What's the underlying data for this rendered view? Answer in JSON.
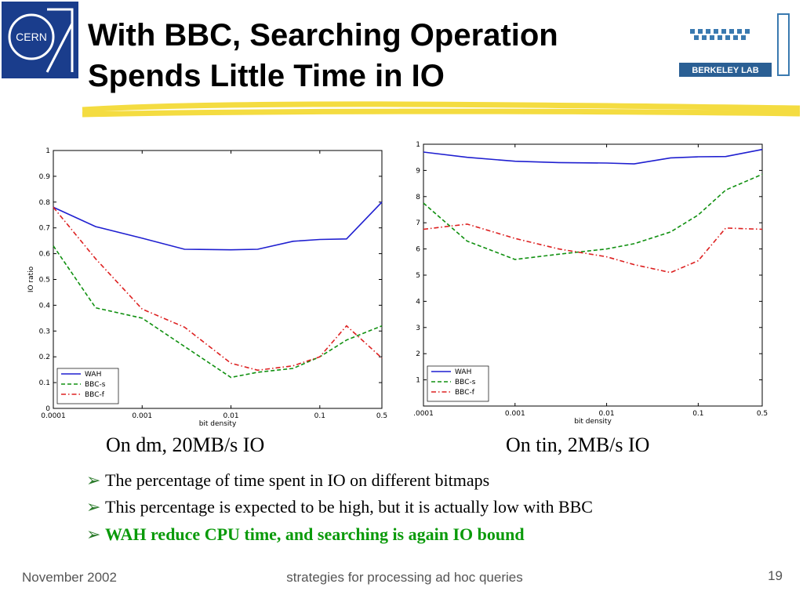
{
  "title": [
    "With BBC, Searching Operation",
    "Spends Little Time in IO"
  ],
  "logos": {
    "left": "CERN",
    "right": "BERKELEY LAB"
  },
  "chart_data": [
    {
      "type": "line",
      "xlabel": "bit density",
      "ylabel": "IO ratio",
      "log_x": true,
      "legend": "lower left",
      "x": [
        0.0001,
        0.0003,
        0.001,
        0.003,
        0.01,
        0.02,
        0.05,
        0.1,
        0.2,
        0.5
      ],
      "xlim": [
        0.0001,
        0.5
      ],
      "xticks": [
        0.0001,
        0.001,
        0.01,
        0.1,
        0.5
      ],
      "ylim": [
        0,
        1
      ],
      "yticks": [
        0,
        0.1,
        0.2,
        0.3,
        0.4,
        0.5,
        0.6,
        0.7,
        0.8,
        0.9,
        1
      ],
      "series": [
        {
          "name": "WAH",
          "color": "#1f1fd0",
          "dash": "solid",
          "values": [
            0.78,
            0.705,
            0.66,
            0.617,
            0.615,
            0.617,
            0.648,
            0.655,
            0.657,
            0.8
          ]
        },
        {
          "name": "BBC-s",
          "color": "#109010",
          "dash": "dashed",
          "values": [
            0.63,
            0.39,
            0.35,
            0.24,
            0.12,
            0.14,
            0.155,
            0.2,
            0.265,
            0.32
          ]
        },
        {
          "name": "BBC-f",
          "color": "#dd2020",
          "dash": "dashdot",
          "values": [
            0.78,
            0.58,
            0.385,
            0.315,
            0.175,
            0.148,
            0.165,
            0.2,
            0.32,
            0.195
          ]
        }
      ]
    },
    {
      "type": "line",
      "xlabel": "bit density",
      "log_x": true,
      "legend": "lower left",
      "x": [
        0.0001,
        0.0003,
        0.001,
        0.003,
        0.01,
        0.02,
        0.05,
        0.1,
        0.2,
        0.5
      ],
      "xlim": [
        0.0001,
        0.5
      ],
      "xticks": [
        {
          "value": 0.0001,
          "label": ".0001"
        },
        0.001,
        0.01,
        0.1,
        0.5
      ],
      "ylim": [
        0,
        1
      ],
      "yticks": [
        {
          "value": 0.1,
          "label": "1"
        },
        {
          "value": 0.2,
          "label": "2"
        },
        {
          "value": 0.3,
          "label": "3"
        },
        {
          "value": 0.4,
          "label": "4"
        },
        {
          "value": 0.5,
          "label": "5"
        },
        {
          "value": 0.6,
          "label": "6"
        },
        {
          "value": 0.7,
          "label": "7"
        },
        {
          "value": 0.8,
          "label": "8"
        },
        {
          "value": 0.9,
          "label": "9"
        },
        1
      ],
      "series": [
        {
          "name": "WAH",
          "color": "#1f1fd0",
          "dash": "solid",
          "values": [
            0.97,
            0.95,
            0.935,
            0.93,
            0.928,
            0.925,
            0.948,
            0.952,
            0.953,
            0.98
          ]
        },
        {
          "name": "BBC-s",
          "color": "#109010",
          "dash": "dashed",
          "values": [
            0.775,
            0.63,
            0.56,
            0.58,
            0.6,
            0.62,
            0.665,
            0.73,
            0.825,
            0.885
          ]
        },
        {
          "name": "BBC-f",
          "color": "#dd2020",
          "dash": "dashdot",
          "values": [
            0.675,
            0.695,
            0.64,
            0.6,
            0.57,
            0.54,
            0.51,
            0.555,
            0.68,
            0.675
          ]
        }
      ]
    }
  ],
  "captions": [
    "On dm, 20MB/s IO",
    "On tin, 2MB/s IO"
  ],
  "bullets": [
    "The percentage of time spent in IO on different bitmaps",
    "This percentage is expected to be high, but it is actually low with BBC",
    "WAH reduce CPU time, and searching is again IO bound"
  ],
  "footer": {
    "date": "November 2002",
    "topic": "strategies for processing ad hoc queries",
    "page": "19"
  }
}
